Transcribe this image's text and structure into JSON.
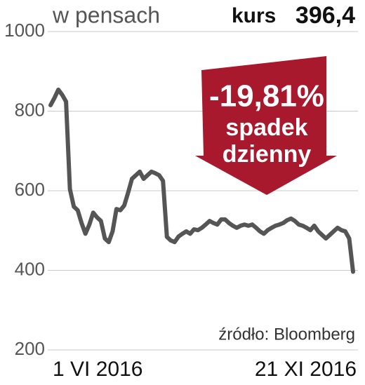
{
  "chart_data": {
    "type": "line",
    "unit_label": "w pensach",
    "price_label": "kurs",
    "price_value": "396,4",
    "annotation": {
      "change": "-19,81%",
      "line1": "spadek",
      "line2": "dzienny"
    },
    "source": "źródło: Bloomberg",
    "categories": [
      "1 VI 2016",
      null,
      null,
      null,
      null,
      null,
      null,
      null,
      null,
      null,
      null,
      null,
      null,
      null,
      null,
      null,
      null,
      null,
      null,
      null,
      null,
      null,
      null,
      null,
      null,
      null,
      null,
      null,
      null,
      null,
      null,
      null,
      null,
      null,
      null,
      null,
      null,
      null,
      null,
      null,
      null,
      null,
      null,
      null,
      null,
      null,
      null,
      null,
      null,
      null,
      null,
      null,
      null,
      null,
      null,
      null,
      null,
      null,
      null,
      null,
      null,
      null,
      null,
      null,
      null,
      null,
      null,
      null,
      null,
      null,
      null,
      null,
      null,
      null,
      null,
      null,
      null,
      null,
      "21 XI 2016"
    ],
    "series": [
      {
        "color": "#555555",
        "values": [
          815,
          833,
          854,
          841,
          824,
          604,
          560,
          551,
          519,
          492,
          515,
          545,
          533,
          524,
          480,
          471,
          498,
          554,
          551,
          563,
          595,
          630,
          639,
          648,
          630,
          639,
          648,
          644,
          639,
          625,
          484,
          475,
          471,
          485,
          492,
          498,
          492,
          503,
          501,
          507,
          515,
          524,
          519,
          515,
          528,
          528,
          519,
          512,
          507,
          512,
          515,
          512,
          515,
          507,
          498,
          492,
          501,
          507,
          512,
          515,
          519,
          526,
          530,
          524,
          515,
          512,
          507,
          501,
          512,
          498,
          489,
          480,
          489,
          498,
          507,
          501,
          498,
          480,
          396.4
        ]
      }
    ],
    "ylim": [
      200,
      1000
    ],
    "yticks": [
      200,
      400,
      600,
      800,
      1000
    ],
    "grid": true,
    "annotation_color": "#a8192e"
  }
}
